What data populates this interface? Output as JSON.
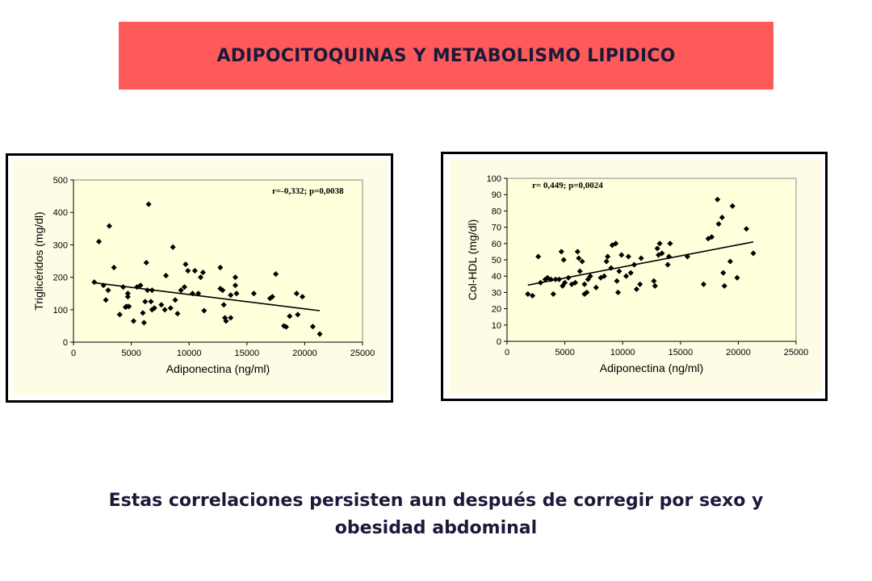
{
  "title": "ADIPOCITOQUINAS Y METABOLISMO LIPIDICO",
  "caption": {
    "line1": "Estas correlaciones persisten aun después de corregir por sexo y",
    "line2": "obesidad abdominal"
  },
  "colors": {
    "banner": "#ff5a5a",
    "plot_bg": "#ffffdc",
    "panel_bg": "#fefce4",
    "text": "#1a1a3a",
    "points": "#000000"
  },
  "chart_data": [
    {
      "type": "scatter",
      "title": "",
      "annotation": "r=-0,332; p=0,0038",
      "xlabel": "Adiponectina (ng/ml)",
      "ylabel": "Triglicéridos (mg/dl)",
      "xlim": [
        0,
        25000
      ],
      "ylim": [
        0,
        500
      ],
      "xticks": [
        0,
        5000,
        10000,
        15000,
        20000,
        25000
      ],
      "yticks": [
        0,
        100,
        200,
        300,
        400,
        500
      ],
      "grid": false,
      "trendline": {
        "x": [
          1800,
          21300
        ],
        "y": [
          183,
          97
        ]
      },
      "points": [
        [
          1800,
          185
        ],
        [
          2200,
          310
        ],
        [
          2600,
          175
        ],
        [
          2800,
          130
        ],
        [
          3000,
          160
        ],
        [
          3100,
          358
        ],
        [
          3500,
          230
        ],
        [
          4000,
          85
        ],
        [
          4300,
          170
        ],
        [
          4500,
          108
        ],
        [
          4600,
          110
        ],
        [
          4700,
          150
        ],
        [
          4800,
          110
        ],
        [
          4700,
          140
        ],
        [
          5200,
          65
        ],
        [
          5500,
          170
        ],
        [
          5800,
          175
        ],
        [
          6000,
          90
        ],
        [
          6100,
          60
        ],
        [
          6200,
          125
        ],
        [
          6300,
          245
        ],
        [
          6400,
          160
        ],
        [
          6500,
          425
        ],
        [
          6700,
          125
        ],
        [
          6800,
          100
        ],
        [
          6800,
          160
        ],
        [
          7000,
          105
        ],
        [
          7600,
          115
        ],
        [
          7900,
          100
        ],
        [
          8000,
          205
        ],
        [
          8400,
          105
        ],
        [
          8600,
          293
        ],
        [
          8800,
          130
        ],
        [
          9000,
          88
        ],
        [
          9300,
          160
        ],
        [
          9600,
          170
        ],
        [
          9700,
          240
        ],
        [
          9900,
          220
        ],
        [
          10300,
          150
        ],
        [
          10500,
          220
        ],
        [
          10800,
          150
        ],
        [
          11000,
          200
        ],
        [
          11200,
          215
        ],
        [
          11300,
          97
        ],
        [
          12700,
          230
        ],
        [
          12700,
          165
        ],
        [
          12900,
          160
        ],
        [
          13000,
          115
        ],
        [
          13100,
          75
        ],
        [
          13200,
          65
        ],
        [
          13600,
          75
        ],
        [
          13600,
          145
        ],
        [
          14000,
          200
        ],
        [
          14000,
          175
        ],
        [
          14100,
          150
        ],
        [
          15600,
          150
        ],
        [
          17000,
          135
        ],
        [
          17200,
          140
        ],
        [
          17500,
          210
        ],
        [
          18200,
          50
        ],
        [
          18400,
          47
        ],
        [
          18700,
          80
        ],
        [
          19300,
          150
        ],
        [
          19400,
          85
        ],
        [
          19800,
          140
        ],
        [
          20700,
          48
        ],
        [
          21300,
          25
        ]
      ]
    },
    {
      "type": "scatter",
      "title": "",
      "annotation": "r= 0,449; p=0,0024",
      "xlabel": "Adiponectina (ng/ml)",
      "ylabel": "Col-HDL (mg/dl)",
      "xlim": [
        0,
        25000
      ],
      "ylim": [
        0,
        100
      ],
      "xticks": [
        0,
        5000,
        10000,
        15000,
        20000,
        25000
      ],
      "yticks": [
        0,
        10,
        20,
        30,
        40,
        50,
        60,
        70,
        80,
        90,
        100
      ],
      "grid": false,
      "trendline": {
        "x": [
          1800,
          21300
        ],
        "y": [
          34.5,
          61
        ]
      },
      "points": [
        [
          1800,
          29
        ],
        [
          2200,
          28
        ],
        [
          2700,
          52
        ],
        [
          2900,
          36
        ],
        [
          3300,
          38
        ],
        [
          3500,
          39
        ],
        [
          3800,
          38
        ],
        [
          4000,
          29
        ],
        [
          4200,
          38
        ],
        [
          4500,
          38
        ],
        [
          4700,
          55
        ],
        [
          4800,
          34
        ],
        [
          4900,
          50
        ],
        [
          5000,
          36
        ],
        [
          5300,
          39
        ],
        [
          5600,
          35
        ],
        [
          5900,
          36
        ],
        [
          6100,
          55
        ],
        [
          6200,
          51
        ],
        [
          6300,
          43
        ],
        [
          6500,
          49
        ],
        [
          6700,
          35
        ],
        [
          6700,
          29
        ],
        [
          6900,
          30
        ],
        [
          7000,
          38
        ],
        [
          7200,
          40
        ],
        [
          7700,
          33
        ],
        [
          8100,
          39
        ],
        [
          8400,
          40
        ],
        [
          8600,
          49
        ],
        [
          8700,
          52
        ],
        [
          9000,
          45
        ],
        [
          9100,
          59
        ],
        [
          9400,
          60
        ],
        [
          9500,
          37
        ],
        [
          9600,
          30
        ],
        [
          9700,
          43
        ],
        [
          9900,
          53
        ],
        [
          10300,
          40
        ],
        [
          10500,
          52
        ],
        [
          10700,
          42
        ],
        [
          11000,
          47
        ],
        [
          11200,
          32
        ],
        [
          11500,
          35
        ],
        [
          11600,
          51
        ],
        [
          12700,
          37
        ],
        [
          12800,
          34
        ],
        [
          13000,
          57
        ],
        [
          13100,
          53
        ],
        [
          13200,
          60
        ],
        [
          13400,
          54
        ],
        [
          13900,
          47
        ],
        [
          14000,
          52
        ],
        [
          14100,
          60
        ],
        [
          15600,
          52
        ],
        [
          17000,
          35
        ],
        [
          17400,
          63
        ],
        [
          17700,
          64
        ],
        [
          18200,
          87
        ],
        [
          18300,
          72
        ],
        [
          18600,
          76
        ],
        [
          18700,
          42
        ],
        [
          18800,
          34
        ],
        [
          19300,
          49
        ],
        [
          19500,
          83
        ],
        [
          19900,
          39
        ],
        [
          20700,
          69
        ],
        [
          21300,
          54
        ]
      ]
    }
  ]
}
